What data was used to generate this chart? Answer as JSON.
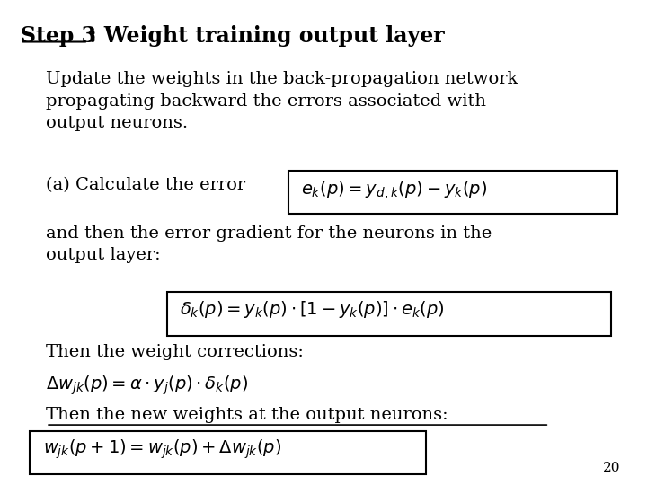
{
  "title_bold": "Step 3",
  "title_rest": ": Weight training output layer",
  "body_text_1": "Update the weights in the back-propagation network\npropagating backward the errors associated with\noutput neurons.",
  "body_text_2": "(a) Calculate the error",
  "formula1": "$e_k(p) = y_{d,k}(p) - y_k(p)$",
  "body_text_3": "and then the error gradient for the neurons in the\noutput layer:",
  "formula2": "$\\delta_k(p) = y_k(p)\\cdot[1 - y_k(p)]\\cdot e_k(p)$",
  "body_text_4": "Then the weight corrections:",
  "formula3": "$\\Delta w_{jk}(p) = \\alpha \\cdot y_j(p) \\cdot \\delta_k(p)$",
  "body_text_5": "Then the new weights at the output neurons:",
  "formula4": "$w_{jk}(p+1) = w_{jk}(p) + \\Delta w_{jk}(p)$",
  "page_number": "20",
  "bg_color": "#ffffff",
  "text_color": "#000000",
  "font_size_title": 17,
  "font_size_body": 14,
  "font_size_formula": 14,
  "font_size_page": 11
}
